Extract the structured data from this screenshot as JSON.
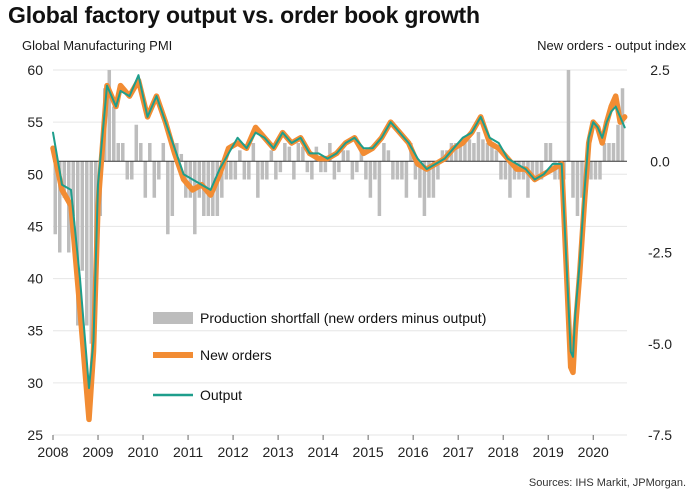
{
  "chart_data": {
    "type": "line",
    "title": "Global factory output vs. order book growth",
    "ylabel_left": "Global  Manufacturing  PMI",
    "ylabel_right": "New orders  - output  index",
    "source": "Sources: IHS Markit, JPMorgan.",
    "x_range": [
      2008.0,
      2020.75
    ],
    "x_ticks": [
      "2008",
      "2009",
      "2010",
      "2011",
      "2012",
      "2013",
      "2014",
      "2015",
      "2016",
      "2017",
      "2018",
      "2019",
      "2020"
    ],
    "ylim_left": [
      25,
      60
    ],
    "yticks_left": [
      "25",
      "30",
      "35",
      "40",
      "45",
      "50",
      "55",
      "60"
    ],
    "ylim_right": [
      -7.5,
      2.5
    ],
    "yticks_right": [
      "2.5",
      "0.0",
      "-2.5",
      "-5.0",
      "-7.5"
    ],
    "legend": {
      "placement": "center-left",
      "items": [
        {
          "label": "Production shortfall (new orders minus output)",
          "color": "#bdbdbd"
        },
        {
          "label": "New orders",
          "color": "#f28c33"
        },
        {
          "label": "Output",
          "color": "#1e9e8c"
        }
      ]
    },
    "colors": {
      "bars": "#bdbdbd",
      "new_orders": "#f28c33",
      "output": "#1e9e8c",
      "zero_line": "#333333"
    },
    "series": [
      {
        "name": "New orders",
        "x": [
          2008.0,
          2008.2,
          2008.4,
          2008.6,
          2008.8,
          2008.9,
          2009.0,
          2009.2,
          2009.4,
          2009.5,
          2009.7,
          2009.9,
          2010.1,
          2010.3,
          2010.5,
          2010.7,
          2010.9,
          2011.1,
          2011.3,
          2011.5,
          2011.7,
          2011.9,
          2012.1,
          2012.3,
          2012.5,
          2012.7,
          2012.9,
          2013.1,
          2013.3,
          2013.5,
          2013.7,
          2013.9,
          2014.1,
          2014.3,
          2014.5,
          2014.7,
          2014.9,
          2015.1,
          2015.3,
          2015.5,
          2015.7,
          2015.9,
          2016.1,
          2016.3,
          2016.5,
          2016.7,
          2016.9,
          2017.1,
          2017.3,
          2017.5,
          2017.7,
          2017.9,
          2018.1,
          2018.3,
          2018.5,
          2018.7,
          2018.9,
          2019.1,
          2019.3,
          2019.5,
          2019.55,
          2019.6,
          2019.7,
          2019.8,
          2019.9,
          2020.0,
          2020.1,
          2020.2,
          2020.3,
          2020.4,
          2020.5,
          2020.6,
          2020.7
        ],
        "values": [
          52.5,
          48.5,
          47.0,
          37.0,
          26.5,
          33.0,
          47.0,
          58.5,
          56.5,
          58.5,
          57.5,
          59.0,
          55.5,
          57.5,
          55.0,
          52.0,
          49.5,
          48.5,
          49.0,
          48.0,
          50.0,
          52.5,
          53.0,
          52.5,
          54.5,
          53.5,
          52.5,
          54.0,
          53.0,
          53.5,
          52.0,
          51.5,
          51.5,
          52.0,
          53.0,
          53.5,
          52.0,
          52.5,
          53.5,
          55.0,
          54.0,
          53.0,
          51.0,
          50.5,
          51.0,
          51.5,
          52.5,
          53.0,
          54.0,
          55.5,
          53.0,
          52.5,
          51.5,
          50.5,
          50.5,
          49.5,
          50.0,
          50.5,
          51.0,
          31.5,
          31.0,
          35.0,
          40.5,
          47.0,
          53.0,
          55.0,
          54.5,
          53.0,
          55.0,
          56.5,
          57.5,
          55.0,
          55.5
        ]
      },
      {
        "name": "Output",
        "x": [
          2008.0,
          2008.2,
          2008.4,
          2008.6,
          2008.8,
          2008.9,
          2009.0,
          2009.2,
          2009.4,
          2009.5,
          2009.7,
          2009.9,
          2010.1,
          2010.3,
          2010.5,
          2010.7,
          2010.9,
          2011.1,
          2011.3,
          2011.5,
          2011.7,
          2011.9,
          2012.1,
          2012.3,
          2012.5,
          2012.7,
          2012.9,
          2013.1,
          2013.3,
          2013.5,
          2013.7,
          2013.9,
          2014.1,
          2014.3,
          2014.5,
          2014.7,
          2014.9,
          2015.1,
          2015.3,
          2015.5,
          2015.7,
          2015.9,
          2016.1,
          2016.3,
          2016.5,
          2016.7,
          2016.9,
          2017.1,
          2017.3,
          2017.5,
          2017.7,
          2017.9,
          2018.1,
          2018.3,
          2018.5,
          2018.7,
          2018.9,
          2019.1,
          2019.3,
          2019.5,
          2019.55,
          2019.6,
          2019.7,
          2019.8,
          2019.9,
          2020.0,
          2020.1,
          2020.2,
          2020.3,
          2020.4,
          2020.5,
          2020.6,
          2020.7
        ],
        "values": [
          54.0,
          49.0,
          48.5,
          40.0,
          29.5,
          34.0,
          49.0,
          58.5,
          56.5,
          58.0,
          57.5,
          59.5,
          55.5,
          57.5,
          55.0,
          52.5,
          50.0,
          49.5,
          49.0,
          48.5,
          50.5,
          52.0,
          53.5,
          52.5,
          54.0,
          53.5,
          52.5,
          54.0,
          53.0,
          53.5,
          52.0,
          52.0,
          51.5,
          52.0,
          53.0,
          53.5,
          52.5,
          52.5,
          53.5,
          55.0,
          54.0,
          53.0,
          51.5,
          50.5,
          51.0,
          51.5,
          52.5,
          53.5,
          54.0,
          55.5,
          53.5,
          53.0,
          51.5,
          51.0,
          50.5,
          49.5,
          50.0,
          51.0,
          51.0,
          33.0,
          32.5,
          36.5,
          41.5,
          48.0,
          53.5,
          55.0,
          54.5,
          53.5,
          55.0,
          56.0,
          56.5,
          55.5,
          54.5
        ]
      },
      {
        "name": "Production shortfall (new orders minus output)",
        "x": [
          2008.05,
          2008.15,
          2008.25,
          2008.35,
          2008.45,
          2008.55,
          2008.65,
          2008.75,
          2008.85,
          2008.95,
          2009.05,
          2009.15,
          2009.25,
          2009.35,
          2009.45,
          2009.55,
          2009.65,
          2009.75,
          2009.85,
          2009.95,
          2010.05,
          2010.15,
          2010.25,
          2010.35,
          2010.45,
          2010.55,
          2010.65,
          2010.75,
          2010.85,
          2010.95,
          2011.05,
          2011.15,
          2011.25,
          2011.35,
          2011.45,
          2011.55,
          2011.65,
          2011.75,
          2011.85,
          2011.95,
          2012.05,
          2012.15,
          2012.25,
          2012.35,
          2012.45,
          2012.55,
          2012.65,
          2012.75,
          2012.85,
          2012.95,
          2013.05,
          2013.15,
          2013.25,
          2013.35,
          2013.45,
          2013.55,
          2013.65,
          2013.75,
          2013.85,
          2013.95,
          2014.05,
          2014.15,
          2014.25,
          2014.35,
          2014.45,
          2014.55,
          2014.65,
          2014.75,
          2014.85,
          2014.95,
          2015.05,
          2015.15,
          2015.25,
          2015.35,
          2015.45,
          2015.55,
          2015.65,
          2015.75,
          2015.85,
          2015.95,
          2016.05,
          2016.15,
          2016.25,
          2016.35,
          2016.45,
          2016.55,
          2016.65,
          2016.75,
          2016.85,
          2016.95,
          2017.05,
          2017.15,
          2017.25,
          2017.35,
          2017.45,
          2017.55,
          2017.65,
          2017.75,
          2017.85,
          2017.95,
          2018.05,
          2018.15,
          2018.25,
          2018.35,
          2018.45,
          2018.55,
          2018.65,
          2018.75,
          2018.85,
          2018.95,
          2019.05,
          2019.15,
          2019.25,
          2019.35,
          2019.45,
          2019.55,
          2019.65,
          2019.75,
          2019.85,
          2019.95,
          2020.05,
          2020.15,
          2020.25,
          2020.35,
          2020.45,
          2020.55,
          2020.65
        ],
        "values": [
          -2.0,
          -2.5,
          -1.0,
          -2.5,
          -1.5,
          -4.5,
          -3.0,
          -4.5,
          -5.0,
          -3.0,
          -1.5,
          2.0,
          2.5,
          1.5,
          0.5,
          0.5,
          -0.5,
          -0.5,
          1.0,
          0.5,
          -1.0,
          0.5,
          -1.0,
          -0.5,
          0.5,
          -2.0,
          -1.5,
          0.5,
          0.2,
          -1.0,
          -1.0,
          -2.0,
          -1.0,
          -1.5,
          -1.5,
          -1.5,
          -1.5,
          -1.0,
          -0.5,
          -0.5,
          -0.5,
          0.3,
          -0.5,
          -0.5,
          0.5,
          -1.0,
          -0.5,
          -0.5,
          0.3,
          -0.5,
          -0.3,
          0.5,
          0.4,
          -0.5,
          0.5,
          0.4,
          -0.3,
          -0.5,
          0.4,
          -0.3,
          -0.3,
          0.5,
          -0.5,
          -0.3,
          0.3,
          0.3,
          -0.5,
          -0.3,
          0.4,
          -0.5,
          -1.0,
          -0.5,
          -1.5,
          0.5,
          0.3,
          -0.5,
          -0.5,
          -0.5,
          -1.0,
          0.5,
          -0.5,
          -1.0,
          -1.5,
          -1.0,
          -1.0,
          -0.5,
          0.3,
          0.3,
          0.5,
          0.5,
          0.4,
          0.6,
          0.6,
          0.5,
          0.8,
          0.6,
          0.5,
          0.5,
          0.3,
          -0.5,
          -0.5,
          -1.0,
          -0.5,
          -0.5,
          -0.5,
          -1.0,
          -0.5,
          -0.5,
          -0.5,
          0.5,
          0.5,
          -0.5,
          -0.5,
          -0.5,
          2.5,
          -1.0,
          -1.5,
          -1.0,
          -0.5,
          -0.5,
          -0.5,
          -0.5,
          0.5,
          0.5,
          0.5,
          1.0,
          2.0
        ]
      }
    ]
  }
}
